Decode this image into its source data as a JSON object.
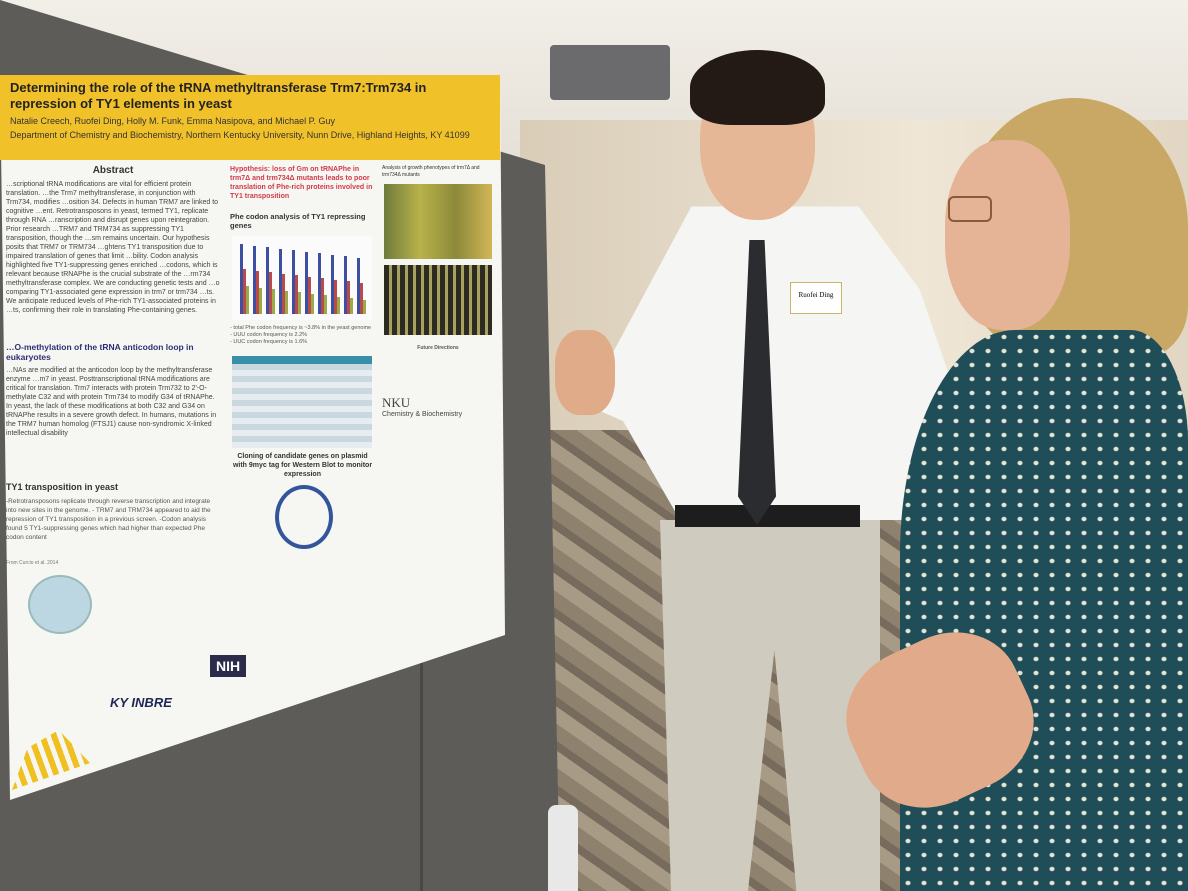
{
  "poster": {
    "title": "Determining the role of the tRNA methyltransferase Trm7:Trm734 in repression of TY1 elements in yeast",
    "authors": "Natalie Creech, Ruofei Ding, Holly M. Funk, Emma Nasipova, and Michael P. Guy",
    "department": "Department of Chemistry and Biochemistry, Northern Kentucky University, Nunn Drive, Highland Heights, KY 41099",
    "abstract_heading": "Abstract",
    "abstract_text": "…scriptional tRNA modifications are vital for efficient protein translation. …the Trm7 methyltransferase, in conjunction with Trm734, modifies …osition 34. Defects in human TRM7 are linked to cognitive …ent. Retrotransposons in yeast, termed TY1, replicate through RNA …ranscription and disrupt genes upon reintegration. Prior research …TRM7 and TRM734 as suppressing TY1 transposition, though the …sm remains uncertain. Our hypothesis posits that TRM7 or TRM734 …ghtens TY1 transposition due to impaired translation of genes that limit …bility. Codon analysis highlighted five TY1-suppressing genes enriched …codons, which is relevant because tRNAPhe is the crucial substrate of the …rm734 methyltransferase complex. We are conducting genetic tests and …o comparing TY1-associated gene expression in trm7 or trm734 …ts. We anticipate reduced levels of Phe-rich TY1-associated proteins in …ts, confirming their role in translating Phe-containing genes.",
    "hypothesis": "Hypothesis: loss of Gm on tRNAPhe in trm7Δ and trm734Δ mutants leads to poor translation of Phe-rich proteins involved in TY1 transposition",
    "omethylation_heading": "…O-methylation of the tRNA anticodon loop in eukaryotes",
    "omethylation_text": "…NAs are modified at the anticodon loop by the methyltransferase enzyme …m7 in yeast. Posttranscriptional tRNA modifications are critical for translation. Trm7 interacts with protein Trm732 to 2'-O-methylate C32 and with protein Trm734 to modify G34 of tRNAPhe. In yeast, the lack of these modifications at both C32 and G34 on tRNAPhe results in a severe growth defect. In humans, mutations in the TRM7 human homolog (FTSJ1) cause non-syndromic X-linked intellectual disability",
    "ty1_heading": "TY1 transposition in yeast",
    "ty1_text": "-Retrotransposons replicate through reverse transcription and integrate into new sites in the genome. - TRM7 and TRM734 appeared to aid the repression of TY1 transposition in a previous screen. -Codon analysis found 5 TY1-suppressing genes which had higher than expected Phe codon content",
    "figure_credit": "From Curcio et al. 2014",
    "phe_heading": "Phe codon analysis of TY1 repressing genes",
    "phe_stats": [
      "- total Phe codon frequency is ~3.8% in the yeast genome",
      "- UUU codon frequency is 2.2%",
      "- UUC codon frequency is 1.6%"
    ],
    "growth_heading": "Analysis of growth phenotypes of trm7Δ and trm734Δ mutants",
    "future_heading": "Future Directions",
    "cloning_heading": "Cloning of candidate genes on plasmid with 9myc tag for Western Blot to monitor expression",
    "nku_logo": "NKU",
    "nku_dept": "Chemistry & Biochemistry",
    "nih_logo": "NIH",
    "inbre_logo": "KY INBRE"
  },
  "nametag": {
    "name": "Ruofei Ding"
  },
  "colors": {
    "banner": "#f1c12a",
    "hypothesis": "#d23a4a",
    "heading_blue": "#2e2f73"
  }
}
